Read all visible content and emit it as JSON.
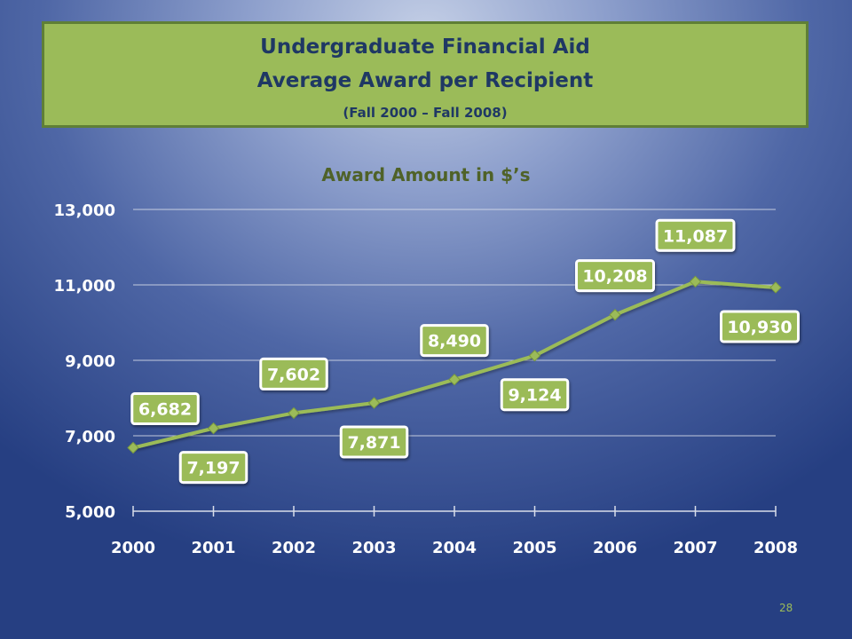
{
  "slide": {
    "title_line1": "Undergraduate Financial Aid",
    "title_line2": "Average Award per Recipient",
    "title_line3": "(Fall 2000 – Fall 2008)",
    "page_number": "28"
  },
  "colors": {
    "title_box": "#9bbb59",
    "title_text": "#1f3864",
    "series_line": "#9bbb59",
    "chart_title": "#4f6228",
    "axis_text": "#ffffff"
  },
  "chart_data": {
    "type": "line",
    "title": "Award Amount in $’s",
    "xlabel": "",
    "ylabel": "",
    "categories": [
      "2000",
      "2001",
      "2002",
      "2003",
      "2004",
      "2005",
      "2006",
      "2007",
      "2008"
    ],
    "series": [
      {
        "values": [
          6682,
          7197,
          7602,
          7871,
          8490,
          9124,
          10208,
          11087,
          10930
        ],
        "data_labels": [
          "6,682",
          "7,197",
          "7,602",
          "7,871",
          "8,490",
          "9,124",
          "10,208",
          "11,087",
          "10,930"
        ],
        "label_positions": [
          "above",
          "below",
          "above",
          "below",
          "above",
          "below",
          "above",
          "above",
          "below"
        ]
      }
    ],
    "ylim": [
      5000,
      13000
    ],
    "yticks": [
      5000,
      7000,
      9000,
      11000,
      13000
    ],
    "ytick_labels": [
      "5,000",
      "7,000",
      "9,000",
      "11,000",
      "13,000"
    ],
    "grid": true,
    "legend": "none"
  }
}
